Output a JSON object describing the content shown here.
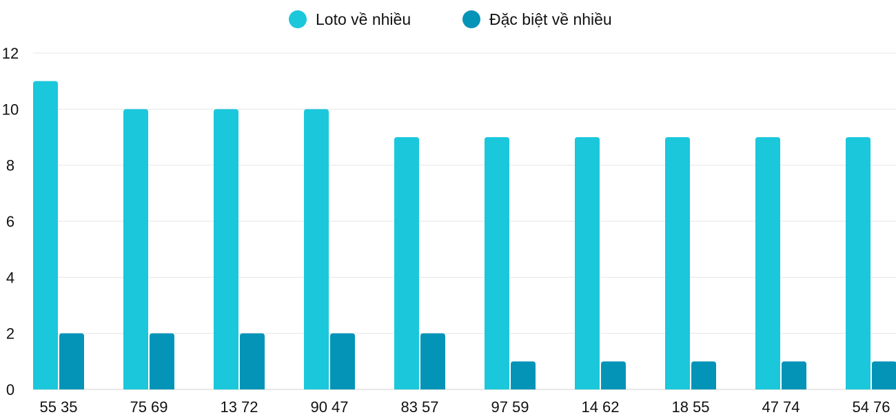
{
  "chart_data": {
    "type": "bar",
    "categories": [
      "55 35",
      "75 69",
      "13 72",
      "90 47",
      "83 57",
      "97 59",
      "14 62",
      "18 55",
      "47 74",
      "54 76"
    ],
    "series": [
      {
        "name": "Loto về nhiều",
        "color": "#1BC7DB",
        "values": [
          11,
          10,
          10,
          10,
          9,
          9,
          9,
          9,
          9,
          9
        ]
      },
      {
        "name": "Đặc biệt về nhiều",
        "color": "#0494B8",
        "values": [
          2,
          2,
          2,
          2,
          2,
          1,
          1,
          1,
          1,
          1
        ]
      }
    ],
    "ylim": [
      0,
      12
    ],
    "yticks": [
      0,
      2,
      4,
      6,
      8,
      10,
      12
    ],
    "grid": true,
    "legend": "top-center"
  }
}
